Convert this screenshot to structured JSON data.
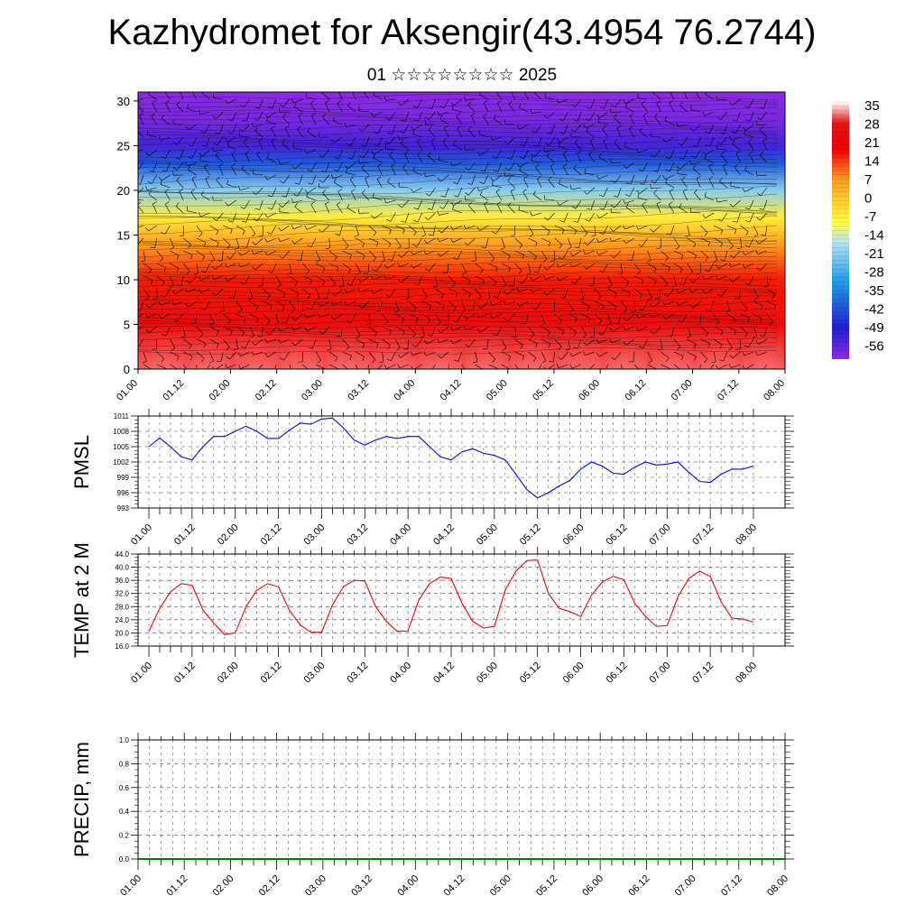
{
  "header": {
    "title": "Kazhydromet for Aksengir(43.4954 76.2744)",
    "subtitle": "01 ☆☆☆☆☆☆☆☆ 2025"
  },
  "chart_data": [
    {
      "type": "heatmap",
      "name": "cross-section",
      "xlabel": "",
      "ylabel": "",
      "x_ticks": [
        "01.00",
        "01.12",
        "02.00",
        "02.12",
        "03.00",
        "03.12",
        "04.00",
        "04.12",
        "05.00",
        "05.12",
        "06.00",
        "06.12",
        "07.00",
        "07.12",
        "08.00"
      ],
      "y_ticks": [
        0,
        5,
        10,
        15,
        20,
        25,
        30
      ],
      "ylim": [
        0,
        31
      ],
      "colorbar": {
        "labels": [
          "35",
          "28",
          "21",
          "14",
          "7",
          "0",
          "-7",
          "-14",
          "-21",
          "-28",
          "-35",
          "-42",
          "-49",
          "-56"
        ],
        "range": [
          -60,
          38
        ],
        "colors": [
          "#8a2be2",
          "#2020d0",
          "#20a0e8",
          "#b0e0f0",
          "#ffff40",
          "#ffa020",
          "#f00000",
          "#ffffff"
        ]
      },
      "vertical_profile": {
        "levels": [
          0,
          5,
          10,
          14,
          17,
          20,
          23,
          25,
          28,
          31
        ],
        "temps": [
          33,
          26,
          18,
          8,
          -5,
          -20,
          -40,
          -52,
          -58,
          -60
        ]
      }
    },
    {
      "type": "line",
      "name": "PMSL",
      "ylabel": "PMSL",
      "ylim": [
        993,
        1011
      ],
      "y_ticks": [
        993,
        996,
        999,
        1002,
        1005,
        1008,
        1011
      ],
      "x_ticks": [
        "01.00",
        "01.12",
        "02.00",
        "02.12",
        "03.00",
        "03.12",
        "04.00",
        "04.12",
        "05.00",
        "05.12",
        "06.00",
        "06.12",
        "07.00",
        "07.12",
        "08.00"
      ],
      "series": [
        {
          "color": "#0000ff",
          "values": [
            1005,
            1006.7,
            1005,
            1003,
            1002.4,
            1005,
            1007,
            1007,
            1008,
            1009,
            1008,
            1006.6,
            1006.6,
            1008.2,
            1009.6,
            1009.4,
            1010.4,
            1010.6,
            1008.7,
            1006.3,
            1005.3,
            1006.3,
            1007,
            1006.6,
            1007,
            1007,
            1005,
            1003,
            1002.4,
            1004,
            1004.6,
            1003.7,
            1003.3,
            1002.4,
            999.6,
            996.6,
            995,
            996,
            997.3,
            998.4,
            1000.6,
            1002,
            1001.2,
            999.8,
            999.6,
            1001,
            1002,
            1001.4,
            1001.6,
            1002,
            1000,
            998.2,
            998,
            999.6,
            1000.6,
            1000.6,
            1001.2
          ]
        }
      ]
    },
    {
      "type": "line",
      "name": "TEMP at 2 M",
      "ylabel": "TEMP at 2 M",
      "ylim": [
        16,
        44
      ],
      "y_ticks": [
        "16.0",
        "20.0",
        "24.0",
        "28.0",
        "32.0",
        "36.0",
        "40.0",
        "44.0"
      ],
      "x_ticks": [
        "01.00",
        "01.12",
        "02.00",
        "02.12",
        "03.00",
        "03.12",
        "04.00",
        "04.12",
        "05.00",
        "05.12",
        "06.00",
        "06.12",
        "07.00",
        "07.12",
        "08.00"
      ],
      "series": [
        {
          "color": "#ff0000",
          "values": [
            20.5,
            27.5,
            32.5,
            35,
            34.5,
            27,
            23,
            19.5,
            20,
            28,
            33,
            35,
            34,
            27,
            22.5,
            20.2,
            20.2,
            28.5,
            34,
            36,
            35.8,
            28,
            23.5,
            20.5,
            20.6,
            30,
            35,
            37,
            36.6,
            29,
            23.5,
            21.5,
            22,
            33,
            38.8,
            42,
            42.2,
            32,
            27.5,
            26.5,
            25,
            31.5,
            35.5,
            37.2,
            36.2,
            29,
            25,
            22,
            22.2,
            31,
            36.5,
            38.8,
            37.2,
            29.5,
            24.5,
            24.2,
            23.3
          ]
        }
      ]
    },
    {
      "type": "line",
      "name": "PRECIP, mm",
      "ylabel": "PRECIP, mm",
      "ylim": [
        0,
        1
      ],
      "y_ticks": [
        "0.0",
        "0.2",
        "0.4",
        "0.6",
        "0.8",
        "1.0"
      ],
      "x_ticks": [
        "01.00",
        "01.12",
        "02.00",
        "02.12",
        "03.00",
        "03.12",
        "04.00",
        "04.12",
        "05.00",
        "05.12",
        "06.00",
        "06.12",
        "07.00",
        "07.12",
        "08.00"
      ],
      "series": [
        {
          "color": "#008000",
          "values": [
            0,
            0,
            0,
            0,
            0,
            0,
            0,
            0,
            0,
            0,
            0,
            0,
            0,
            0,
            0,
            0,
            0,
            0,
            0,
            0,
            0,
            0,
            0,
            0,
            0,
            0,
            0,
            0,
            0,
            0,
            0,
            0,
            0,
            0,
            0,
            0,
            0,
            0,
            0,
            0,
            0,
            0,
            0,
            0,
            0,
            0,
            0,
            0,
            0,
            0,
            0,
            0,
            0,
            0,
            0,
            0,
            0
          ]
        }
      ]
    }
  ]
}
